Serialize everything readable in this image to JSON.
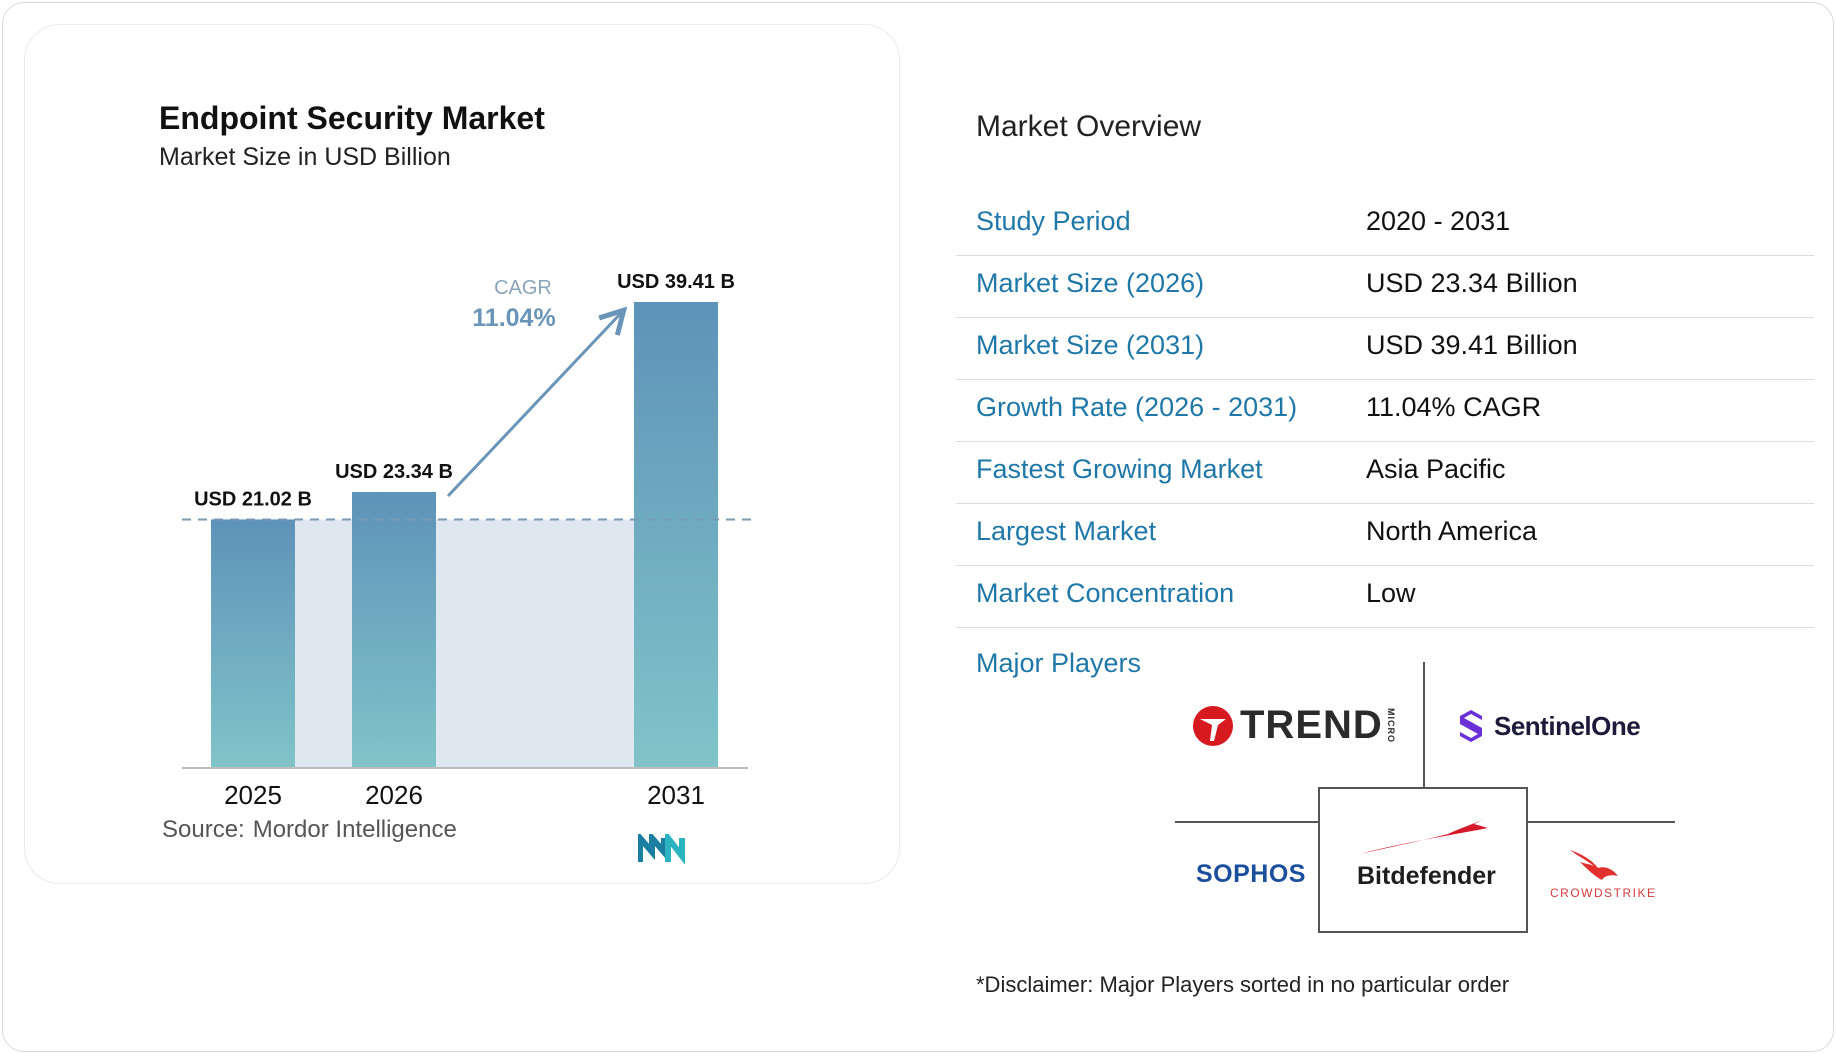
{
  "chart_data": {
    "type": "bar",
    "title": "Endpoint Security Market",
    "subtitle": "Market Size in USD Billion",
    "categories": [
      "2025",
      "2026",
      "2031"
    ],
    "values": [
      21.02,
      23.34,
      39.41
    ],
    "data_labels": [
      "USD 21.02 B",
      "USD 23.34 B",
      "USD 39.41 B"
    ],
    "annotation": {
      "label": "CAGR",
      "value": "11.04%"
    },
    "ylim": [
      0,
      39.41
    ],
    "grid": false,
    "colors": {
      "bar_top": "#5e93b9",
      "bar_bottom": "#80c4c9",
      "band": "#dfe8f0",
      "arrow": "#6a95b8",
      "cagr": "#6a95b8"
    },
    "source_label": "Source:",
    "source_value": "Mordor Intelligence"
  },
  "overview": {
    "title": "Market Overview",
    "rows": [
      {
        "label": "Study Period",
        "value": "2020 - 2031"
      },
      {
        "label": "Market Size (2026)",
        "value": "USD 23.34 Billion"
      },
      {
        "label": "Market Size (2031)",
        "value": "USD 39.41 Billion"
      },
      {
        "label": "Growth Rate (2026 - 2031)",
        "value": "11.04% CAGR"
      },
      {
        "label": "Fastest Growing Market",
        "value": "Asia Pacific"
      },
      {
        "label": "Largest Market",
        "value": "North America"
      },
      {
        "label": "Market Concentration",
        "value": "Low"
      }
    ],
    "label_color": "#1f78a8"
  },
  "players": {
    "label": "Major Players",
    "trend": {
      "name": "TREND",
      "sub": "MICRO"
    },
    "sentinel": "SentinelOne",
    "sophos": "SOPHOS",
    "bitdefender": "Bitdefender",
    "crowdstrike": "CROWDSTRIKE"
  },
  "disclaimer": "*Disclaimer: Major Players sorted in no particular order"
}
